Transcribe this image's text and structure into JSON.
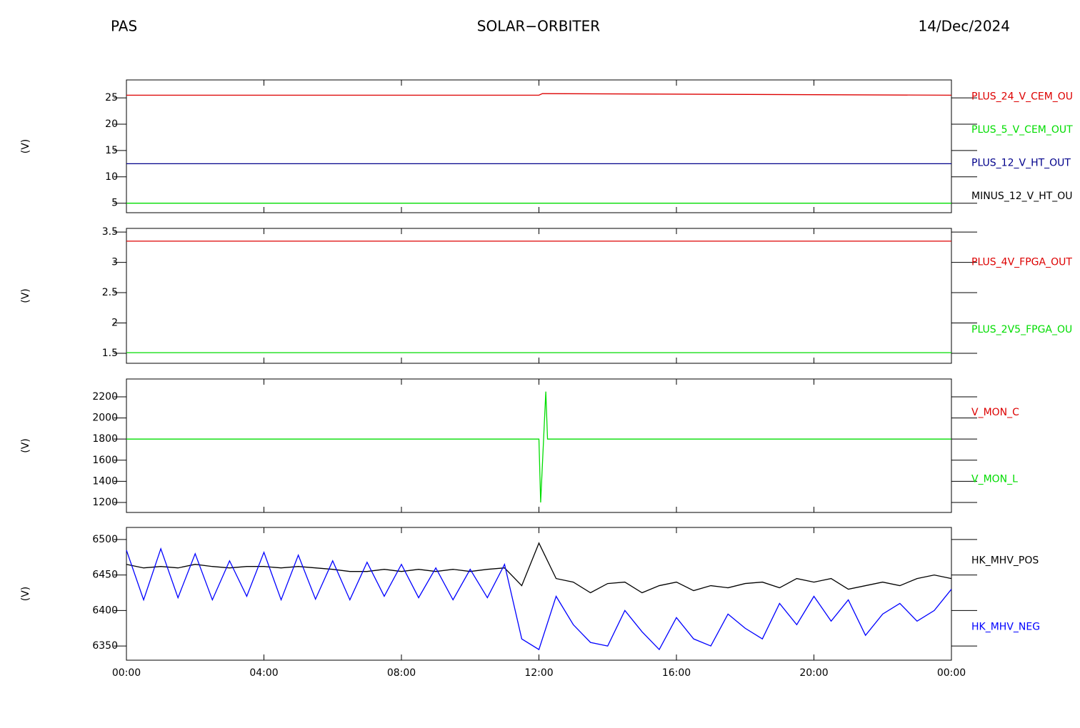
{
  "header": {
    "left": "PAS",
    "center": "SOLAR−ORBITER",
    "right": "14/Dec/2024"
  },
  "chart_data": [
    {
      "type": "line",
      "ylabel": "(V)",
      "x": [
        0,
        12,
        12.1,
        24
      ],
      "xlim": [
        0,
        24
      ],
      "ylim": [
        3.2,
        28.4
      ],
      "yticks": [
        5,
        10,
        15,
        20,
        25
      ],
      "series": [
        {
          "name": "PLUS_24_V_CEM_OU",
          "color": "#dd0000",
          "values": [
            25.5,
            25.5,
            25.8,
            25.5
          ]
        },
        {
          "name": "PLUS_5_V_CEM_OUT",
          "color": "#00dd00",
          "values": [
            5.0,
            5.0,
            5.0,
            5.0
          ]
        },
        {
          "name": "PLUS_12_V_HT_OUT",
          "color": "#00008b",
          "values": [
            12.5,
            12.5,
            12.5,
            12.5
          ]
        },
        {
          "name": "MINUS_12_V_HT_OU",
          "color": "#000000",
          "values": [
            null,
            null,
            null,
            null
          ]
        }
      ]
    },
    {
      "type": "line",
      "ylabel": "(V)",
      "x": [
        0,
        24
      ],
      "xlim": [
        0,
        24
      ],
      "ylim": [
        1.335,
        3.56
      ],
      "yticks": [
        1.5,
        2.0,
        2.5,
        3.0,
        3.5
      ],
      "series": [
        {
          "name": "PLUS_4V_FPGA_OUT",
          "color": "#dd0000",
          "values": [
            3.35,
            3.35
          ]
        },
        {
          "name": "PLUS_2V5_FPGA_OU",
          "color": "#00dd00",
          "values": [
            1.51,
            1.51
          ]
        }
      ]
    },
    {
      "type": "line",
      "ylabel": "(V)",
      "x": [
        0,
        12,
        12.05,
        12.2,
        12.25,
        24
      ],
      "xlim": [
        0,
        24
      ],
      "ylim": [
        1105,
        2369
      ],
      "yticks": [
        1200,
        1400,
        1600,
        1800,
        2000,
        2200
      ],
      "series": [
        {
          "name": "V_MON_C",
          "color": "#dd0000",
          "values": [
            null,
            null,
            null,
            null,
            null,
            null
          ]
        },
        {
          "name": "V_MON_L",
          "color": "#00dd00",
          "values": [
            1800,
            1800,
            1200,
            2250,
            1800,
            1800
          ]
        }
      ]
    },
    {
      "type": "line",
      "ylabel": "(V)",
      "x": [
        0,
        0.5,
        1,
        1.5,
        2,
        2.5,
        3,
        3.5,
        4,
        4.5,
        5,
        5.5,
        6,
        6.5,
        7,
        7.5,
        8,
        8.5,
        9,
        9.5,
        10,
        10.5,
        11,
        11.5,
        12,
        12.5,
        13,
        13.5,
        14,
        14.5,
        15,
        15.5,
        16,
        16.5,
        17,
        17.5,
        18,
        18.5,
        19,
        19.5,
        20,
        20.5,
        21,
        21.5,
        22,
        22.5,
        23,
        23.5,
        24
      ],
      "xlim": [
        0,
        24
      ],
      "xticks": [
        {
          "value": 0,
          "label": "00:00"
        },
        {
          "value": 4,
          "label": "04:00"
        },
        {
          "value": 8,
          "label": "08:00"
        },
        {
          "value": 12,
          "label": "12:00"
        },
        {
          "value": 16,
          "label": "16:00"
        },
        {
          "value": 20,
          "label": "20:00"
        },
        {
          "value": 24,
          "label": "00:00"
        }
      ],
      "ylim": [
        6330,
        6517
      ],
      "yticks": [
        6350,
        6400,
        6450,
        6500
      ],
      "series": [
        {
          "name": "HK_MHV_POS",
          "color": "#000000",
          "values": [
            6465,
            6460,
            6462,
            6460,
            6465,
            6462,
            6460,
            6462,
            6462,
            6460,
            6462,
            6460,
            6458,
            6455,
            6455,
            6458,
            6455,
            6458,
            6455,
            6458,
            6455,
            6458,
            6460,
            6435,
            6495,
            6445,
            6440,
            6425,
            6438,
            6440,
            6425,
            6435,
            6440,
            6428,
            6435,
            6432,
            6438,
            6440,
            6432,
            6445,
            6440,
            6445,
            6430,
            6435,
            6440,
            6435,
            6445,
            6450,
            6445
          ]
        },
        {
          "name": "HK_MHV_NEG",
          "color": "#0000ff",
          "values": [
            6485,
            6415,
            6487,
            6418,
            6480,
            6415,
            6470,
            6420,
            6482,
            6415,
            6478,
            6416,
            6470,
            6415,
            6468,
            6420,
            6465,
            6418,
            6460,
            6415,
            6458,
            6418,
            6465,
            6360,
            6345,
            6420,
            6380,
            6355,
            6350,
            6400,
            6370,
            6345,
            6390,
            6360,
            6350,
            6395,
            6375,
            6360,
            6410,
            6380,
            6420,
            6385,
            6415,
            6365,
            6395,
            6410,
            6385,
            6400,
            6430
          ]
        }
      ]
    }
  ]
}
